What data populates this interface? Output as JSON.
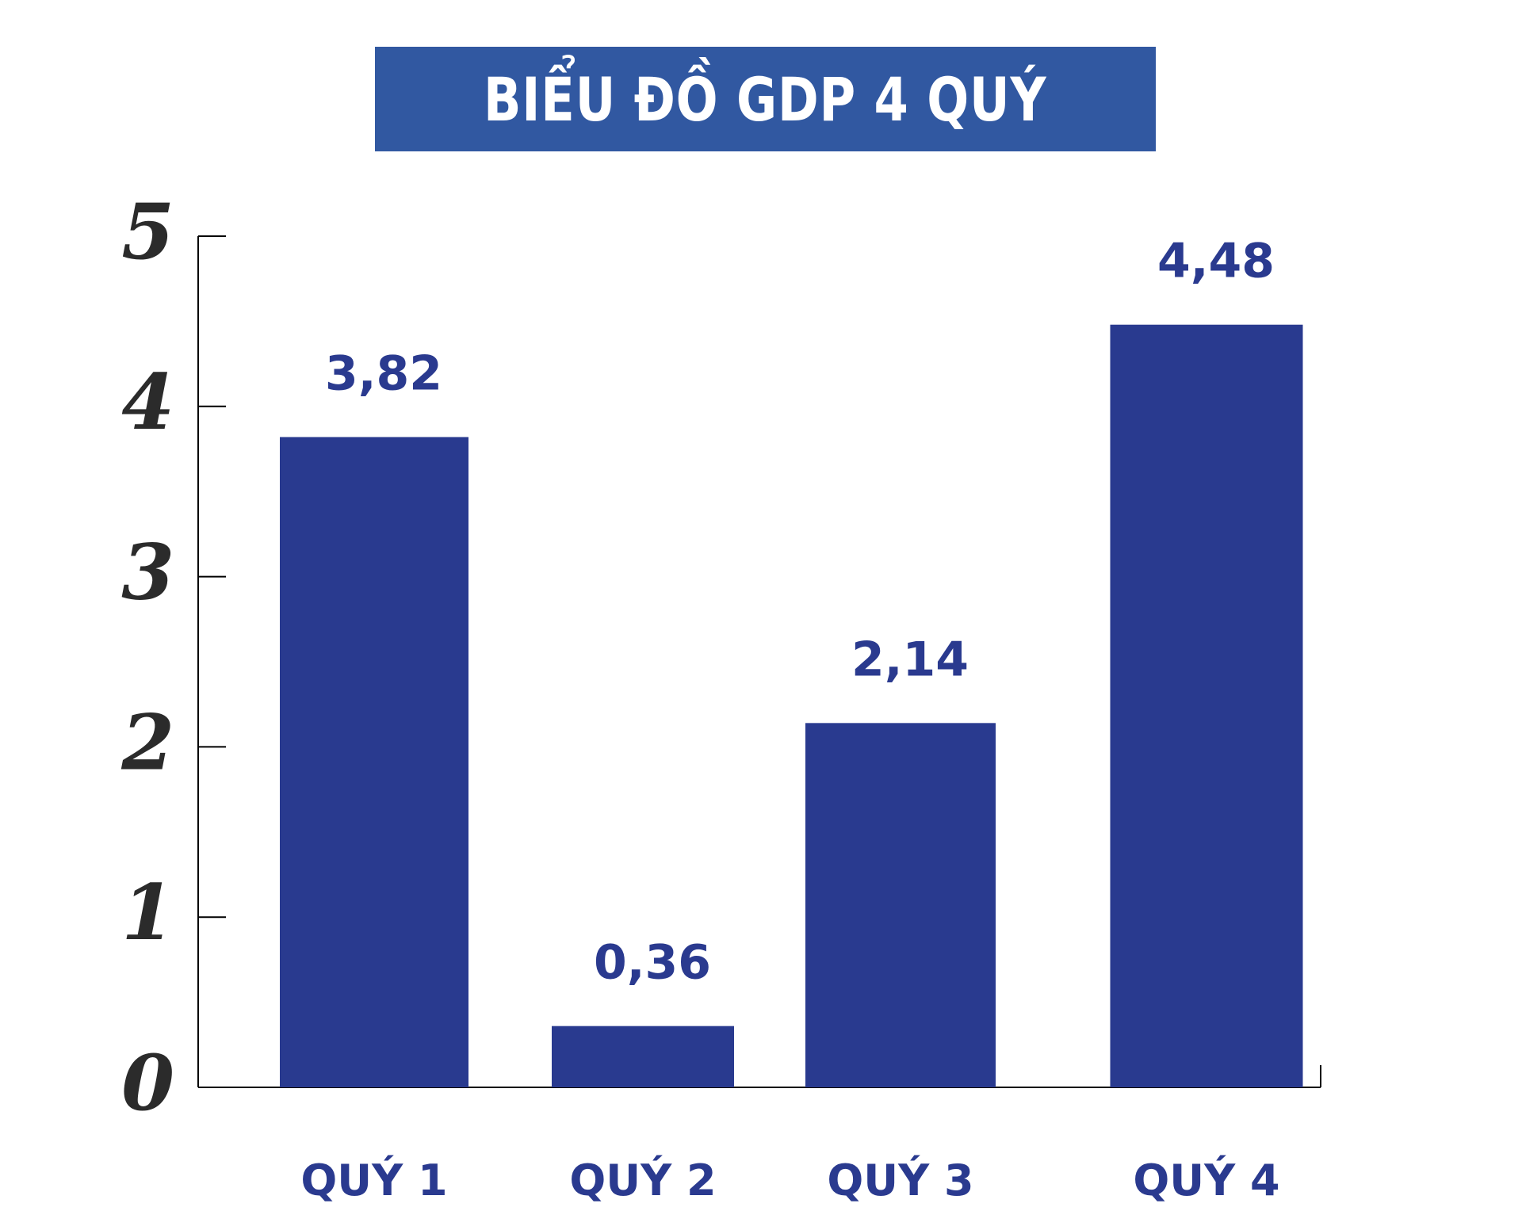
{
  "chart_data": {
    "type": "bar",
    "title": "BIỂU ĐỒ GDP 4 QUÝ",
    "categories": [
      "QUÝ 1",
      "QUÝ 2",
      "QUÝ 3",
      "QUÝ 4"
    ],
    "values": [
      3.82,
      0.36,
      2.14,
      4.48
    ],
    "value_labels": [
      "3,82",
      "0,36",
      "2,14",
      "4,48"
    ],
    "yticks": [
      0,
      1,
      2,
      3,
      4,
      5
    ],
    "ylim": [
      0,
      5
    ],
    "grid": false,
    "colors": {
      "bar": "#293a8f",
      "title_bg": "#3158a1",
      "label": "#2a3a8f",
      "axis": "#000000"
    }
  }
}
